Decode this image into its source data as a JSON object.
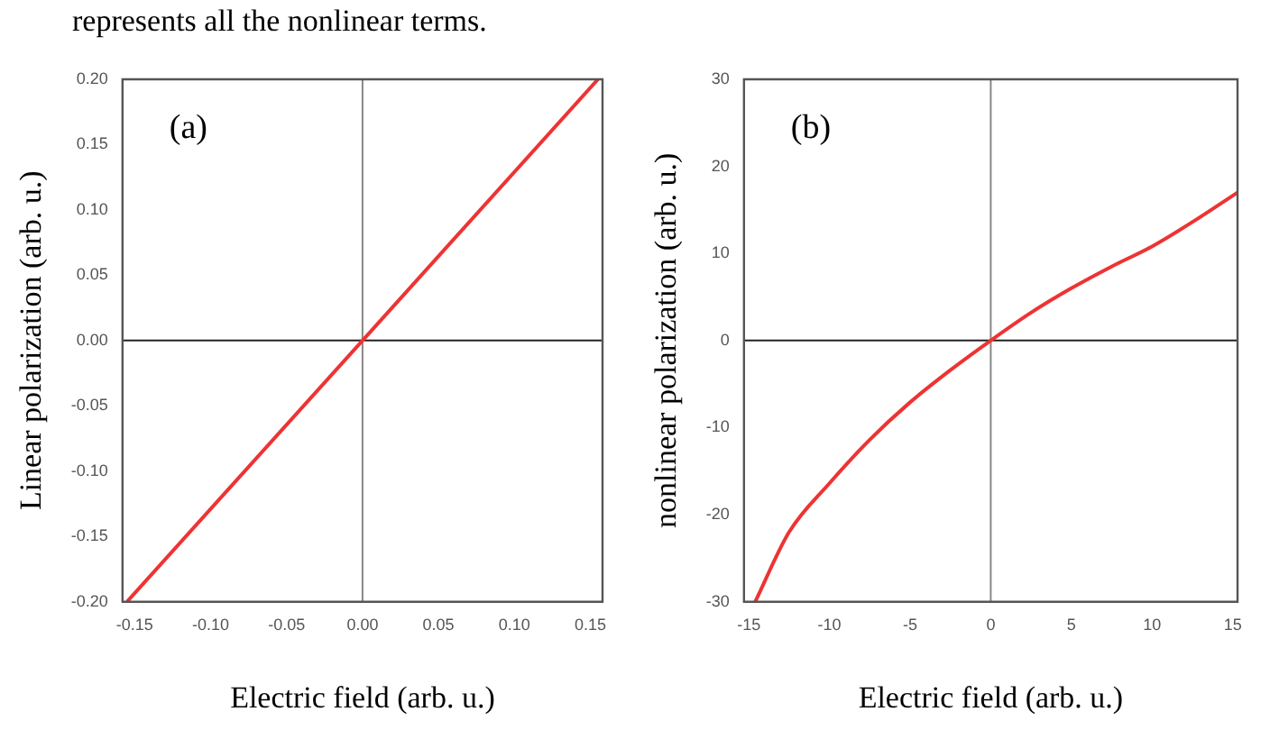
{
  "chart_data": [
    {
      "type": "line",
      "title": "(a)",
      "xlabel": "Electric field (arb. u.)",
      "ylabel": "Linear polarization (arb. u.)",
      "annotations": [
        "represents all the nonlinear terms."
      ],
      "x": [
        -0.155,
        0,
        0.155
      ],
      "series": [
        {
          "color": "#ee3333",
          "values": [
            -0.2,
            0,
            0.2
          ]
        }
      ],
      "xlim": [
        -0.158,
        0.158
      ],
      "xticks": [
        -0.15,
        {
          "value": -0.1,
          "label": "-0.10"
        },
        -0.05,
        {
          "value": 0,
          "label": "0.00"
        },
        0.05,
        {
          "value": 0.1,
          "label": "0.10"
        },
        0.15
      ],
      "ylim": [
        -0.2,
        0.2
      ],
      "yticks": [
        {
          "value": -0.2,
          "label": "-0.20"
        },
        -0.15,
        {
          "value": -0.1,
          "label": "-0.10"
        },
        -0.05,
        {
          "value": 0,
          "label": "0.00"
        },
        0.05,
        {
          "value": 0.1,
          "label": "0.10"
        },
        0.15,
        {
          "value": 0.2,
          "label": "0.20"
        }
      ],
      "ref_lines": [
        {
          "axis": "x",
          "value": 0,
          "color": "#888888"
        },
        {
          "axis": "y",
          "value": 0,
          "color": "#222222"
        }
      ],
      "grid": false,
      "legend": false,
      "marker": "none",
      "line_style": "solid"
    },
    {
      "type": "line",
      "title": "(b)",
      "xlabel": "Electric field (arb. u.)",
      "ylabel": "nonlinear polarization (arb. u.)",
      "x": [
        -14.6,
        -12.5,
        -10,
        -7.5,
        -5,
        -2.5,
        0,
        2.5,
        5,
        7.5,
        10,
        12.5,
        15.3
      ],
      "series": [
        {
          "color": "#ee3333",
          "values": [
            -30,
            -22.0,
            -16.4,
            -11.4,
            -7.1,
            -3.4,
            0,
            3.2,
            6.0,
            8.5,
            10.8,
            13.6,
            17.0
          ]
        }
      ],
      "xlim": [
        -15.3,
        15.3
      ],
      "xticks": [
        -15,
        -10,
        -5,
        0,
        5,
        10,
        15
      ],
      "ylim": [
        -30,
        30
      ],
      "yticks": [
        -30,
        -20,
        -10,
        0,
        10,
        20,
        30
      ],
      "ref_lines": [
        {
          "axis": "x",
          "value": 0,
          "color": "#888888"
        },
        {
          "axis": "y",
          "value": 0,
          "color": "#222222"
        }
      ],
      "grid": false,
      "legend": false,
      "marker": "none",
      "line_style": "solid"
    }
  ]
}
